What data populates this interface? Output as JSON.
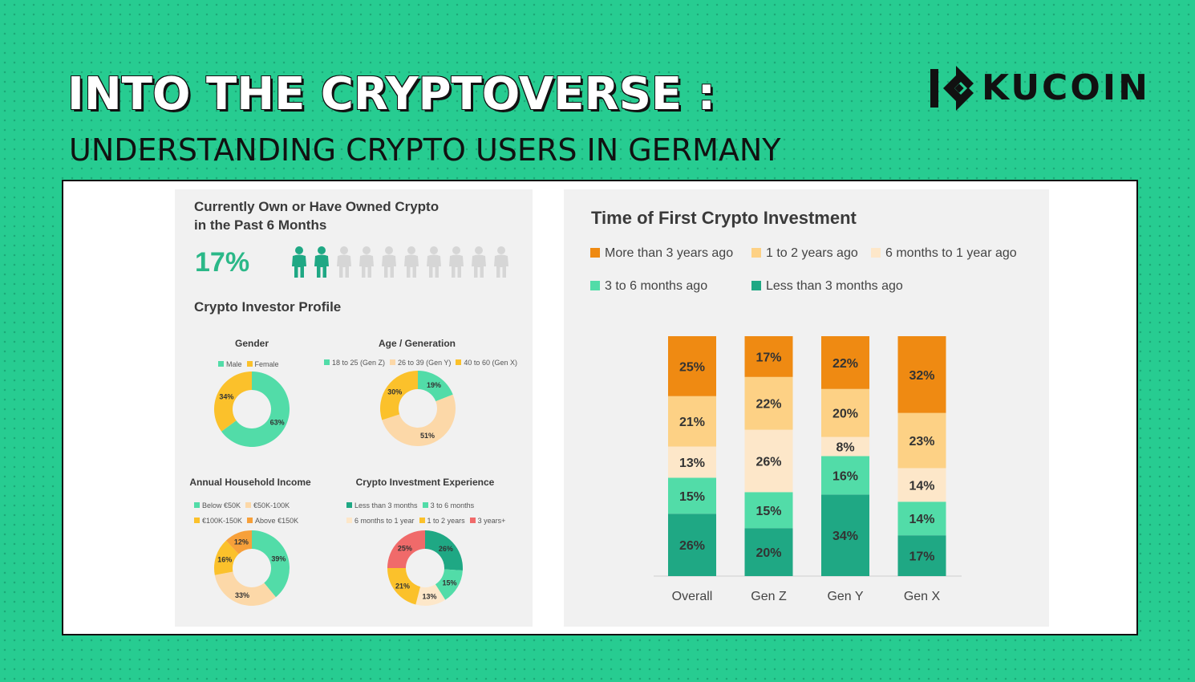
{
  "header": {
    "title": "INTO THE CRYPTOVERSE :",
    "subtitle": "UNDERSTANDING CRYPTO USERS IN GERMANY",
    "logo_text": "KUCOIN"
  },
  "colors": {
    "background": "#27cc91",
    "teal_dark": "#1fa884",
    "teal_light": "#52dca8",
    "orange": "#ef8a12",
    "yellow": "#fbc12b",
    "light_yellow": "#fdd185",
    "cream": "#fde7c9",
    "peach": "#fcd8a8",
    "salmon": "#f06a6a",
    "person_gray": "#d6d6d6"
  },
  "ownership": {
    "title": "Currently Own or Have Owned Crypto in the Past 6 Months",
    "percent": "17%",
    "icon": "person-icon",
    "highlighted_people": 2,
    "total_people": 10
  },
  "profile": {
    "title": "Crypto Investor Profile"
  },
  "chart_data": [
    {
      "id": "gender",
      "type": "pie",
      "donut": true,
      "title": "Gender",
      "legend": [
        "Male",
        "Female"
      ],
      "series": [
        {
          "name": "Male",
          "value": 63,
          "label": "63%",
          "color": "#52dca8"
        },
        {
          "name": "Female",
          "value": 34,
          "label": "34%",
          "color": "#fbc12b"
        }
      ]
    },
    {
      "id": "age",
      "type": "pie",
      "donut": true,
      "title": "Age / Generation",
      "legend": [
        "18 to 25 (Gen Z)",
        "26 to 39  (Gen Y)",
        "40 to 60 (Gen X)"
      ],
      "series": [
        {
          "name": "18 to 25 (Gen Z)",
          "value": 19,
          "label": "19%",
          "color": "#52dca8"
        },
        {
          "name": "26 to 39  (Gen Y)",
          "value": 51,
          "label": "51%",
          "color": "#fcd8a8"
        },
        {
          "name": "40 to 60 (Gen X)",
          "value": 30,
          "label": "30%",
          "color": "#fbc12b"
        }
      ]
    },
    {
      "id": "income",
      "type": "pie",
      "donut": true,
      "title": "Annual Household Income",
      "legend": [
        "Below €50K",
        "€50K-100K",
        "€100K-150K",
        "Above €150K"
      ],
      "series": [
        {
          "name": "Below €50K",
          "value": 39,
          "label": "39%",
          "color": "#52dca8"
        },
        {
          "name": "€50K-100K",
          "value": 33,
          "label": "33%",
          "color": "#fcd8a8"
        },
        {
          "name": "€100K-150K",
          "value": 16,
          "label": "16%",
          "color": "#fbc12b"
        },
        {
          "name": "Above €150K",
          "value": 12,
          "label": "12%",
          "color": "#f7a03a"
        }
      ]
    },
    {
      "id": "experience",
      "type": "pie",
      "donut": true,
      "title": "Crypto Investment Experience",
      "legend": [
        "Less than 3 months",
        "3 to 6 months",
        "6 months to 1 year",
        "1 to 2 years",
        "3 years+"
      ],
      "series": [
        {
          "name": "Less than 3 months",
          "value": 26,
          "label": "26%",
          "color": "#1fa884"
        },
        {
          "name": "3 to 6 months",
          "value": 15,
          "label": "15%",
          "color": "#52dca8"
        },
        {
          "name": "6 months to 1 year",
          "value": 13,
          "label": "13%",
          "color": "#fde7c9"
        },
        {
          "name": "1 to 2 years",
          "value": 21,
          "label": "21%",
          "color": "#fbc12b"
        },
        {
          "name": "3 years+",
          "value": 25,
          "label": "25%",
          "color": "#f06a6a"
        }
      ]
    },
    {
      "id": "first_investment",
      "type": "bar",
      "stacked": true,
      "title": "Time of First Crypto Investment",
      "categories": [
        "Overall",
        "Gen Z",
        "Gen Y",
        "Gen X"
      ],
      "legend_position": "top",
      "series": [
        {
          "name": "Less than 3 months ago",
          "color": "#1fa884",
          "values": [
            26,
            20,
            34,
            17
          ]
        },
        {
          "name": "3 to 6 months ago",
          "color": "#52dca8",
          "values": [
            15,
            15,
            16,
            14
          ]
        },
        {
          "name": "6 months to 1 year ago",
          "color": "#fde7c9",
          "values": [
            13,
            26,
            8,
            14
          ]
        },
        {
          "name": "1 to 2 years ago",
          "color": "#fdd185",
          "values": [
            21,
            22,
            20,
            23
          ]
        },
        {
          "name": "More than 3 years ago",
          "color": "#ef8a12",
          "values": [
            25,
            17,
            22,
            32
          ]
        }
      ],
      "legend_order": [
        "More than 3 years ago",
        "1 to 2 years ago",
        "6 months to 1 year ago",
        "3 to 6 months ago",
        "Less than 3 months ago"
      ]
    }
  ]
}
